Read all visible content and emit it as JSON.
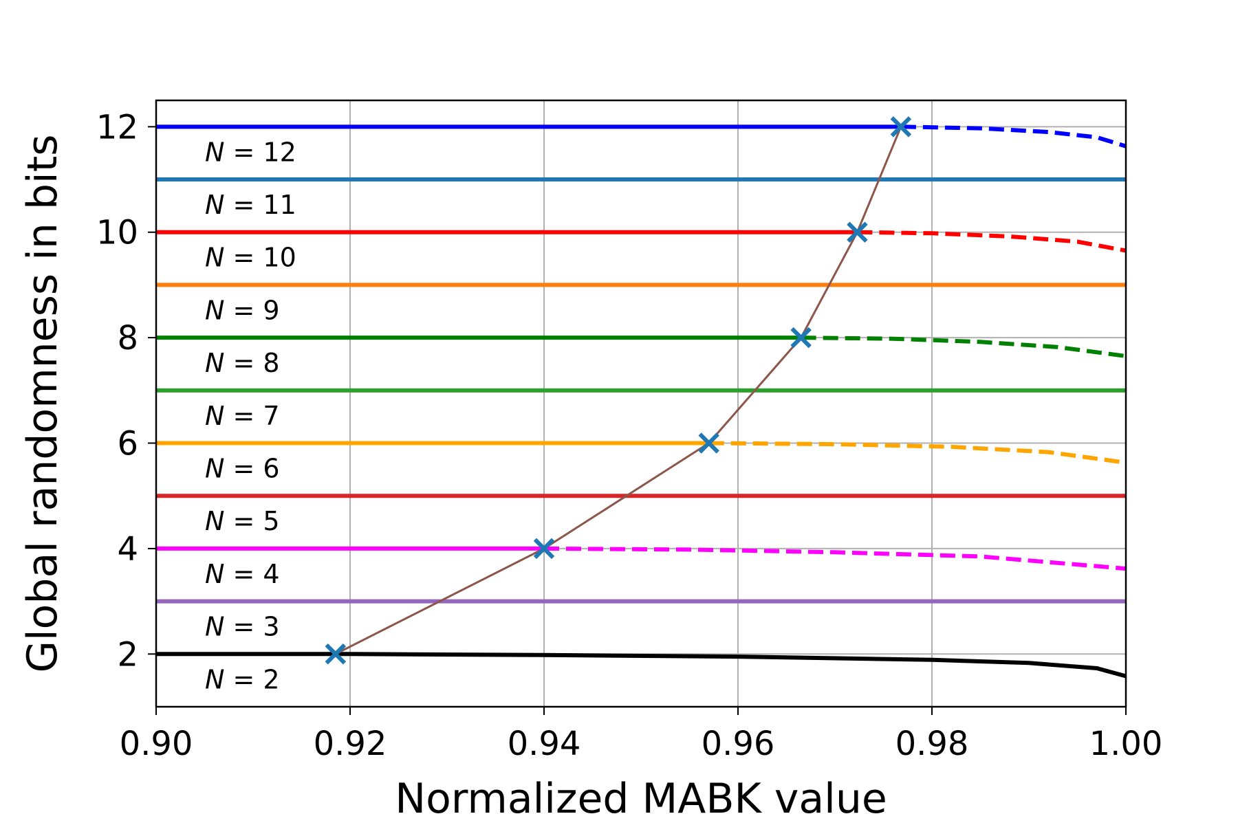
{
  "chart_data": {
    "type": "line",
    "xlabel": "Normalized MABK value",
    "ylabel": "Global randomness in bits",
    "xlim": [
      0.9,
      1.0
    ],
    "ylim": [
      1.0,
      12.5
    ],
    "x_ticks": [
      "0.90",
      "0.92",
      "0.94",
      "0.96",
      "0.98",
      "1.00"
    ],
    "y_ticks": [
      "2",
      "4",
      "6",
      "8",
      "10",
      "12"
    ],
    "grid": true,
    "constant_lines": [
      {
        "n": 12,
        "y": 12,
        "color": "#0000ff",
        "label": "N = 12"
      },
      {
        "n": 11,
        "y": 11,
        "color": "#1f77b4",
        "label": "N = 11"
      },
      {
        "n": 10,
        "y": 10,
        "color": "#ff0000",
        "label": "N = 10"
      },
      {
        "n": 9,
        "y": 9,
        "color": "#ff7f0e",
        "label": "N = 9"
      },
      {
        "n": 8,
        "y": 8,
        "color": "#008000",
        "label": "N = 8"
      },
      {
        "n": 7,
        "y": 7,
        "color": "#2ca02c",
        "label": "N = 7"
      },
      {
        "n": 6,
        "y": 6,
        "color": "#ffa500",
        "label": "N = 6"
      },
      {
        "n": 5,
        "y": 5,
        "color": "#d62728",
        "label": "N = 5"
      },
      {
        "n": 4,
        "y": 4,
        "color": "#ff00ff",
        "label": "N = 4"
      },
      {
        "n": 3,
        "y": 3,
        "color": "#9467bd",
        "label": "N = 3"
      },
      {
        "n": 2,
        "y": 2,
        "color": "#000000",
        "label": "N = 2"
      }
    ],
    "dashed_curves": [
      {
        "n": 12,
        "color": "#0000ff",
        "x": [
          0.9768,
          0.985,
          0.992,
          0.997,
          1.0
        ],
        "y": [
          12.0,
          11.97,
          11.9,
          11.8,
          11.63
        ]
      },
      {
        "n": 10,
        "color": "#ff0000",
        "x": [
          0.9723,
          0.98,
          0.988,
          0.995,
          1.0
        ],
        "y": [
          10.0,
          9.98,
          9.92,
          9.82,
          9.65
        ]
      },
      {
        "n": 8,
        "color": "#008000",
        "x": [
          0.9665,
          0.976,
          0.985,
          0.993,
          1.0
        ],
        "y": [
          8.0,
          7.98,
          7.92,
          7.82,
          7.65
        ]
      },
      {
        "n": 6,
        "color": "#ffa500",
        "x": [
          0.957,
          0.97,
          0.982,
          0.992,
          1.0
        ],
        "y": [
          6.0,
          5.98,
          5.93,
          5.83,
          5.63
        ]
      },
      {
        "n": 4,
        "color": "#ff00ff",
        "x": [
          0.94,
          0.955,
          0.97,
          0.985,
          1.0
        ],
        "y": [
          4.0,
          3.98,
          3.93,
          3.85,
          3.62
        ]
      }
    ],
    "n2_curve": {
      "color": "#000000",
      "x": [
        0.9,
        0.92,
        0.94,
        0.96,
        0.98,
        0.99,
        0.997,
        1.0
      ],
      "y": [
        2.0,
        2.0,
        1.98,
        1.95,
        1.89,
        1.83,
        1.73,
        1.58
      ]
    },
    "threshold_curve": {
      "color": "#8c564b",
      "marker_color": "#1f77b4",
      "marker": "x",
      "x": [
        0.9185,
        0.94,
        0.957,
        0.9665,
        0.9723,
        0.9768
      ],
      "y": [
        2,
        4,
        6,
        8,
        10,
        12
      ]
    }
  }
}
